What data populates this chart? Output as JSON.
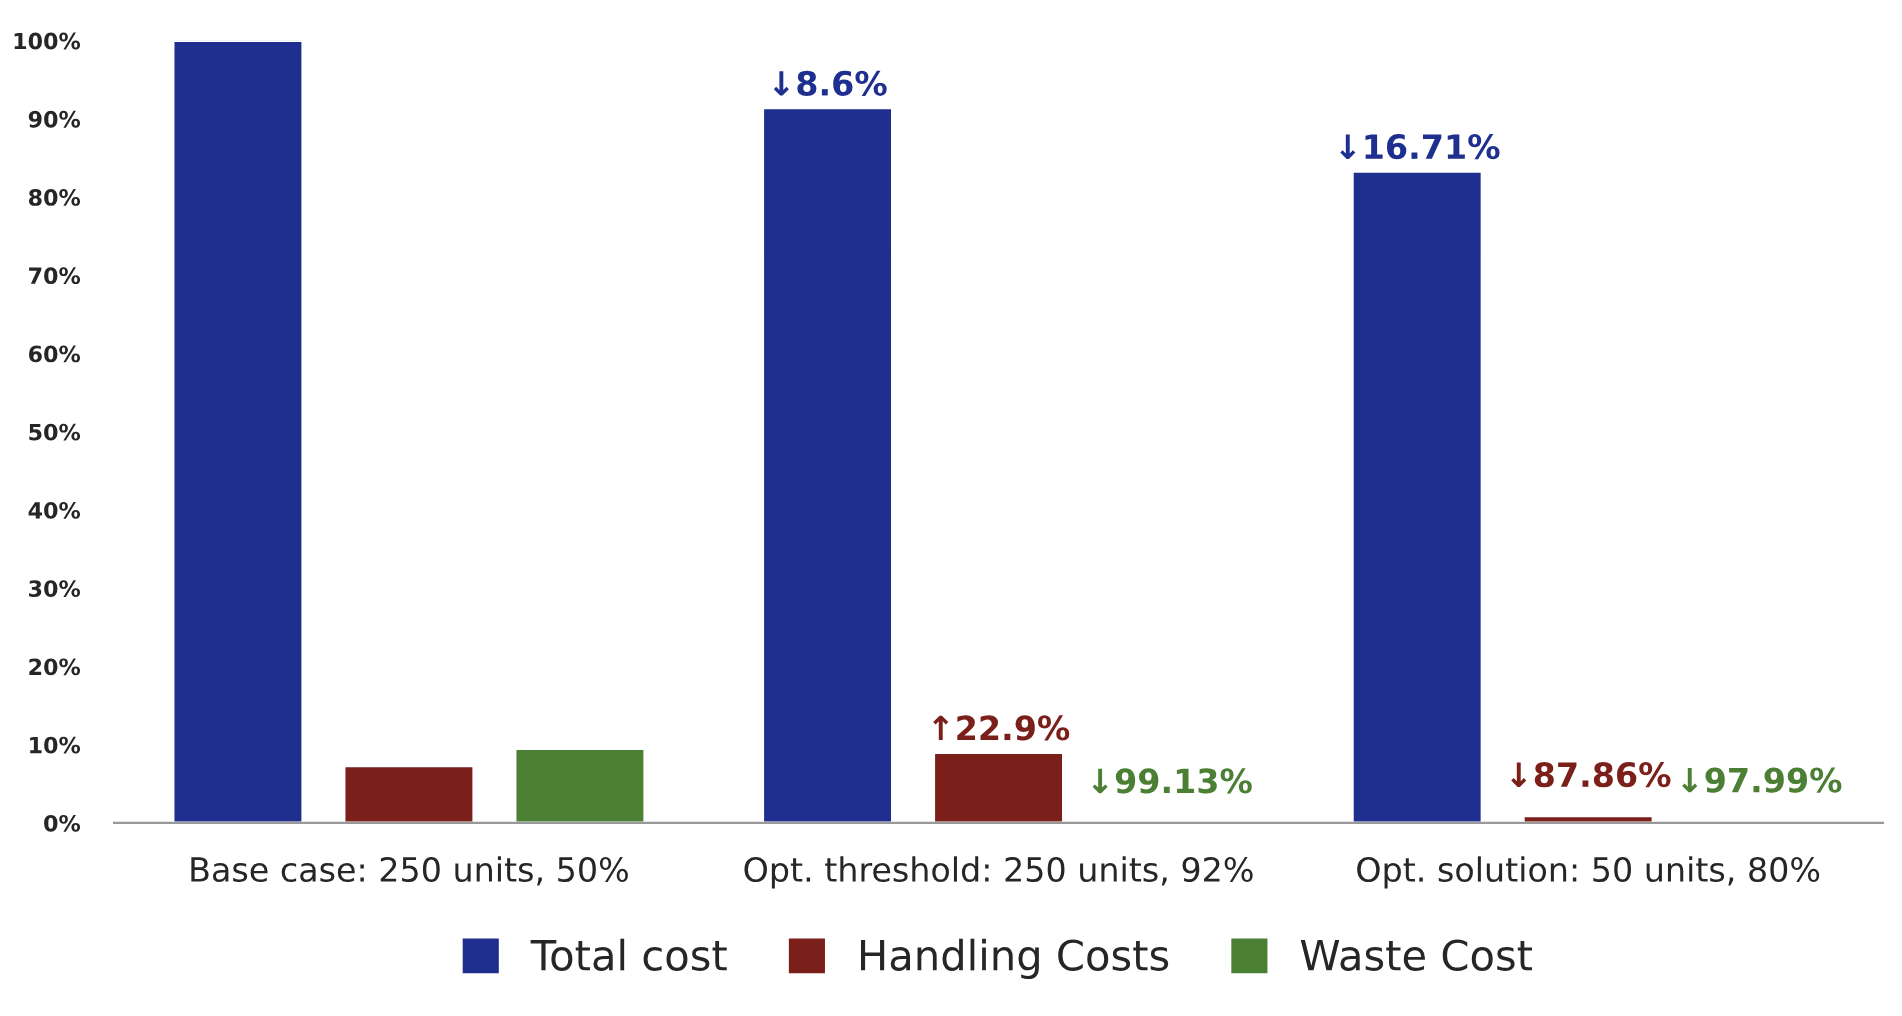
{
  "chart_data": {
    "type": "bar",
    "categories": [
      "Base case: 250 units, 50%",
      "Opt. threshold: 250 units, 92%",
      "Opt. solution: 50 units, 80%"
    ],
    "series": [
      {
        "name": "Total cost",
        "color": "#1f2f8f",
        "values": [
          100,
          91.4,
          83.3
        ]
      },
      {
        "name": "Handling Costs",
        "color": "#7a1f1a",
        "values": [
          7.3,
          9.0,
          0.9
        ]
      },
      {
        "name": "Waste Cost",
        "color": "#4a7f34",
        "values": [
          9.5,
          0.1,
          0.2
        ]
      }
    ],
    "annotations": [
      "↓8.6%",
      "↓16.71%",
      {
        "text": "↑22.9%",
        "x": "Opt. threshold: 250 units, 92%",
        "y": 9.0
      },
      {
        "text": "↓87.86%",
        "x": "Opt. solution: 50 units, 80%",
        "y": 0.9
      },
      {
        "text": "↓99.13%",
        "x": "Opt. threshold: 250 units, 92%",
        "y": 0.1
      },
      {
        "text": "↓97.99%",
        "x": "Opt. solution: 50 units, 80%",
        "y": 0.2
      }
    ],
    "ylim": [
      0,
      100
    ],
    "yticks": [
      {
        "value": 0,
        "label": "0%"
      },
      {
        "value": 10,
        "label": "10%"
      },
      {
        "value": 20,
        "label": "20%"
      },
      {
        "value": 30,
        "label": "30%"
      },
      {
        "value": 40,
        "label": "40%"
      },
      {
        "value": 50,
        "label": "50%"
      },
      {
        "value": 60,
        "label": "60%"
      },
      {
        "value": 70,
        "label": "70%"
      },
      {
        "value": 80,
        "label": "80%"
      },
      {
        "value": 90,
        "label": "90%"
      },
      {
        "value": 100,
        "label": "100%"
      }
    ],
    "grid": false,
    "legend": "bottom"
  }
}
